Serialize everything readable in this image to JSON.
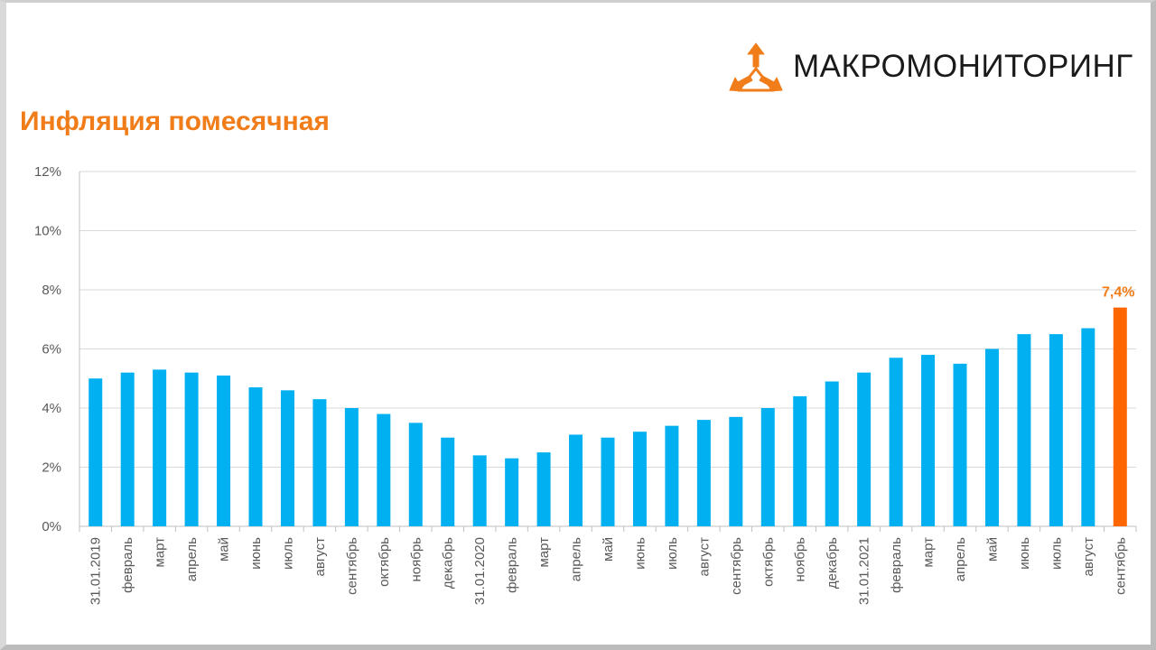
{
  "title": "Инфляция помесячная",
  "logo": {
    "text": "МАКРОМОНИТОРИНГ",
    "icon": "tri-arrow-logo-icon",
    "color": "#f07d1a"
  },
  "colors": {
    "bar": "#00b0f0",
    "highlight": "#ff6600",
    "grid": "#d9d9d9",
    "axis_text": "#595959",
    "title": "#f07d1a"
  },
  "chart_data": {
    "type": "bar",
    "title": "Инфляция помесячная",
    "xlabel": "",
    "ylabel": "",
    "ylim": [
      0,
      12
    ],
    "y_ticks": [
      "0%",
      "2%",
      "4%",
      "6%",
      "8%",
      "10%",
      "12%"
    ],
    "y_tick_values": [
      0,
      2,
      4,
      6,
      8,
      10,
      12
    ],
    "grid": true,
    "categories": [
      "31.01.2019",
      "февраль",
      "март",
      "апрель",
      "май",
      "июнь",
      "июль",
      "август",
      "сентябрь",
      "октябрь",
      "ноябрь",
      "декабрь",
      "31.01.2020",
      "февраль",
      "март",
      "апрель",
      "май",
      "июнь",
      "июль",
      "август",
      "сентябрь",
      "октябрь",
      "ноябрь",
      "декабрь",
      "31.01.2021",
      "февраль",
      "март",
      "апрель",
      "май",
      "июнь",
      "июль",
      "август",
      "сентябрь"
    ],
    "values": [
      5.0,
      5.2,
      5.3,
      5.2,
      5.1,
      4.7,
      4.6,
      4.3,
      4.0,
      3.8,
      3.5,
      3.0,
      2.4,
      2.3,
      2.5,
      3.1,
      3.0,
      3.2,
      3.4,
      3.6,
      3.7,
      4.0,
      4.4,
      4.9,
      5.2,
      5.7,
      5.8,
      5.5,
      6.0,
      6.5,
      6.5,
      6.7,
      7.4
    ],
    "highlight_index": 32,
    "data_labels": [
      {
        "index": 32,
        "text": "7,4%"
      }
    ]
  }
}
